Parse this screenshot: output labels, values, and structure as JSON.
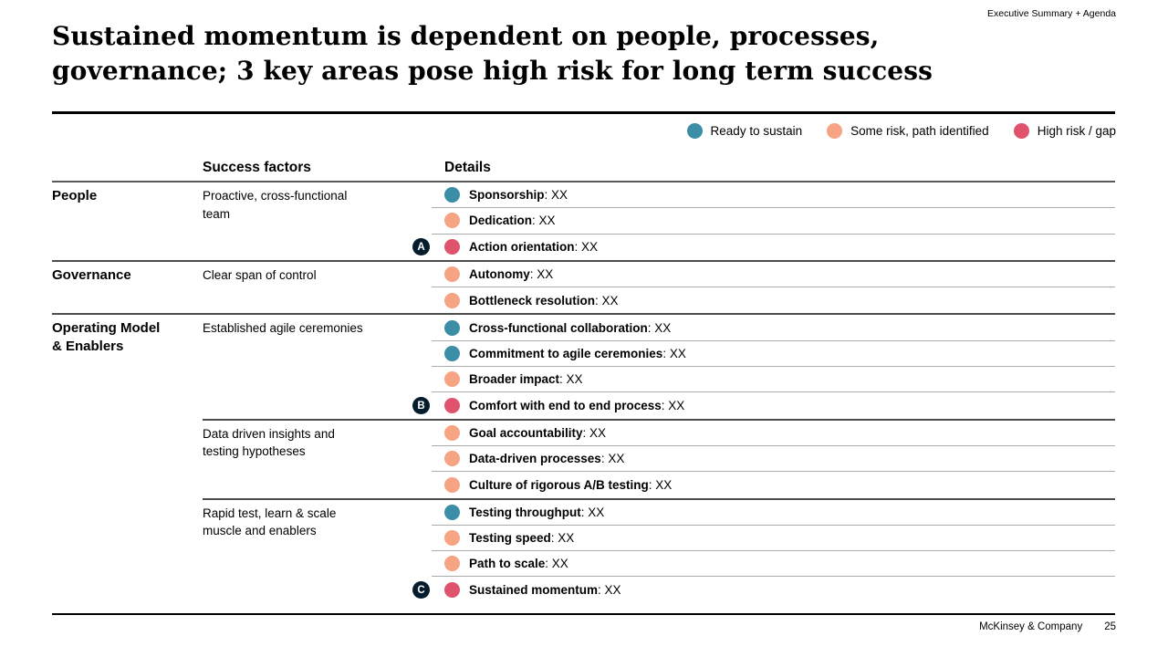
{
  "slide": {
    "top_note": "Executive Summary + Agenda",
    "title_line1": "Sustained momentum is dependent on people, processes,",
    "title_line2": "governance; 3 key areas pose high risk for long term success",
    "footer": {
      "company": "McKinsey & Company",
      "page_number": "25"
    }
  },
  "colors": {
    "ready": "#3C8DA6",
    "some_risk": "#F6A484",
    "high_risk": "#E0536C",
    "badge": "#051C2C"
  },
  "legend": {
    "items": [
      {
        "status": "ready",
        "label": "Ready to sustain"
      },
      {
        "status": "some_risk",
        "label": "Some risk, path identified"
      },
      {
        "status": "high_risk",
        "label": "High risk / gap"
      }
    ]
  },
  "table": {
    "headers": {
      "success_factors": "Success factors",
      "details": "Details"
    },
    "separator": ": ",
    "groups": [
      {
        "category": "People",
        "subgroups": [
          {
            "factor": "Proactive, cross-functional team",
            "rows": [
              {
                "status": "ready",
                "label": "Sponsorship",
                "value": "XX"
              },
              {
                "status": "some_risk",
                "label": "Dedication",
                "value": "XX"
              },
              {
                "status": "high_risk",
                "label": "Action orientation",
                "value": "XX",
                "badge": "A"
              }
            ]
          }
        ]
      },
      {
        "category": "Governance",
        "subgroups": [
          {
            "factor": "Clear span of control",
            "rows": [
              {
                "status": "some_risk",
                "label": "Autonomy",
                "value": "XX"
              },
              {
                "status": "some_risk",
                "label": "Bottleneck resolution",
                "value": "XX"
              }
            ]
          }
        ]
      },
      {
        "category": "Operating Model & Enablers",
        "subgroups": [
          {
            "factor": "Established agile ceremonies",
            "rows": [
              {
                "status": "ready",
                "label": "Cross-functional collaboration",
                "value": "XX"
              },
              {
                "status": "ready",
                "label": "Commitment to agile ceremonies",
                "value": "XX"
              },
              {
                "status": "some_risk",
                "label": "Broader impact",
                "value": "XX"
              },
              {
                "status": "high_risk",
                "label": "Comfort with end to end process",
                "value": "XX",
                "badge": "B"
              }
            ]
          },
          {
            "factor": "Data driven insights and testing hypotheses",
            "rows": [
              {
                "status": "some_risk",
                "label": "Goal accountability",
                "value": "XX"
              },
              {
                "status": "some_risk",
                "label": "Data-driven processes",
                "value": "XX"
              },
              {
                "status": "some_risk",
                "label": "Culture of rigorous A/B testing",
                "value": "XX"
              }
            ]
          },
          {
            "factor": "Rapid test, learn & scale muscle and enablers",
            "rows": [
              {
                "status": "ready",
                "label": "Testing throughput",
                "value": "XX"
              },
              {
                "status": "some_risk",
                "label": "Testing speed",
                "value": "XX"
              },
              {
                "status": "some_risk",
                "label": "Path to scale",
                "value": "XX"
              },
              {
                "status": "high_risk",
                "label": "Sustained momentum",
                "value": "XX",
                "badge": "C"
              }
            ]
          }
        ]
      }
    ]
  }
}
